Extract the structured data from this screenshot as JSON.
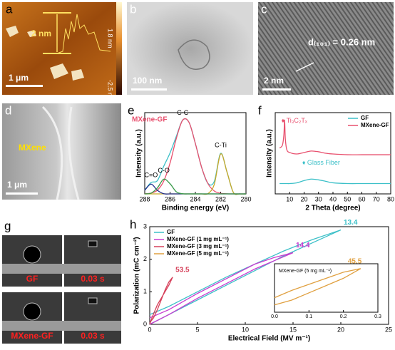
{
  "panels": {
    "a": {
      "label": "a",
      "profile_height": "2 nm",
      "scale_max": "1.8 nm",
      "scale_min": "-2.5 nm",
      "scale_bar": "1 μm"
    },
    "b": {
      "label": "b",
      "scale_bar": "100 nm"
    },
    "c": {
      "label": "c",
      "lattice": "d₍₁₀₁₎ = 0.26 nm",
      "scale_bar": "2 nm"
    },
    "d": {
      "label": "d",
      "material": "MXene",
      "scale_bar": "1 μm"
    },
    "g": {
      "label": "g",
      "top_sample": "GF",
      "top_time": "0.03 s",
      "bottom_sample": "MXene-GF",
      "bottom_time": "0.03 s"
    }
  },
  "chart_data": [
    {
      "type": "line",
      "panel": "e",
      "title": "MXene-GF",
      "xlabel": "Binding energy (eV)",
      "ylabel": "Intensity (a.u.)",
      "x": [
        288,
        287.5,
        287,
        286.5,
        286,
        285.5,
        285,
        284.5,
        284,
        283.5,
        283,
        282.5,
        282,
        281.5,
        281,
        280.5,
        280
      ],
      "xlim": [
        288,
        280
      ],
      "xticks": [
        288,
        286,
        284,
        282,
        280
      ],
      "ylim": [
        0,
        1.08
      ],
      "series": [
        {
          "color": "#3cc0c8",
          "values": [
            0.049,
            0.151,
            0.177,
            0.367,
            0.545,
            0.767,
            0.982,
            0.95,
            0.67,
            0.35,
            0.139,
            0.168,
            0.538,
            0.291,
            0.02,
            0,
            0
          ]
        },
        {
          "name": "C-C",
          "color": "#e8506e",
          "values": [
            0.002,
            0.011,
            0.05,
            0.17,
            0.41,
            0.74,
            0.98,
            0.95,
            0.67,
            0.35,
            0.135,
            0.038,
            0.008,
            0.001,
            0,
            0,
            0
          ]
        },
        {
          "name": "C-Ti",
          "color": "#c8a82a",
          "values": [
            0,
            0,
            0,
            0,
            0,
            0,
            0,
            0,
            0,
            0,
            0.004,
            0.13,
            0.53,
            0.29,
            0.02,
            0,
            0
          ]
        },
        {
          "name": "C=O",
          "color": "#1f2c8c",
          "values": [
            0.047,
            0.13,
            0.047,
            0.002,
            0,
            0,
            0,
            0,
            0,
            0,
            0,
            0,
            0,
            0,
            0,
            0,
            0
          ]
        },
        {
          "name": "C-O",
          "color": "#3a9a4a",
          "values": [
            0,
            0.01,
            0.08,
            0.195,
            0.135,
            0.027,
            0.002,
            0,
            0,
            0,
            0,
            0,
            0,
            0,
            0,
            0,
            0
          ]
        }
      ]
    },
    {
      "type": "line",
      "panel": "f",
      "xlabel": "2 Theta (degree)",
      "ylabel": "Intensity (a.u.)",
      "x": [
        3,
        5,
        6,
        6.5,
        7,
        8,
        10,
        15,
        20,
        25,
        30,
        35,
        40,
        50,
        60,
        70,
        80
      ],
      "xlim": [
        0,
        80
      ],
      "xticks": [
        10,
        20,
        30,
        40,
        50,
        60,
        70,
        80
      ],
      "ylim": [
        0,
        1.1
      ],
      "legend": "upper right",
      "annotations": [
        "♦ Ti₃C₂Tₓ",
        "♦ Glass Fiber"
      ],
      "series": [
        {
          "name": "GF",
          "color": "#3cc0c8",
          "values": [
            0.14,
            0.14,
            0.14,
            0.14,
            0.14,
            0.14,
            0.14,
            0.15,
            0.18,
            0.2,
            0.19,
            0.17,
            0.15,
            0.14,
            0.14,
            0.14,
            0.14
          ]
        },
        {
          "name": "MXene-GF",
          "color": "#e8506e",
          "values": [
            0.62,
            0.66,
            0.8,
            1.0,
            0.75,
            0.6,
            0.56,
            0.54,
            0.56,
            0.58,
            0.57,
            0.55,
            0.54,
            0.53,
            0.53,
            0.53,
            0.53
          ]
        }
      ]
    },
    {
      "type": "line",
      "panel": "h",
      "xlabel": "Electrical Field (MV m⁻¹)",
      "ylabel": "Polarization (mC cm⁻²)",
      "xlim": [
        0,
        25
      ],
      "xticks": [
        0,
        5,
        10,
        15,
        20,
        25
      ],
      "ylim": [
        0,
        3
      ],
      "yticks": [
        0,
        1,
        2,
        3
      ],
      "legend": "upper left",
      "inset": {
        "title": "MXene-GF (5 mg mL⁻¹)",
        "xlim": [
          0,
          0.3
        ],
        "xticks": [
          {
            "value": 0,
            "label": "0.0"
          },
          0.1,
          0.2,
          0.3
        ],
        "ylim": [
          0,
          0.2
        ]
      },
      "series": [
        {
          "name": "GF",
          "color": "#3cc0c8",
          "breakdown": 13.4,
          "x": [
            0,
            2,
            5,
            8,
            11,
            14,
            17,
            20,
            17,
            14,
            11,
            8,
            5,
            2,
            0
          ],
          "values": [
            0,
            0.3,
            0.75,
            1.2,
            1.65,
            2.1,
            2.5,
            2.9,
            2.6,
            2.25,
            1.85,
            1.45,
            1.0,
            0.55,
            0.3
          ]
        },
        {
          "name": "MXene-GF (1 mg mL⁻¹)",
          "color": "#c83cd0",
          "breakdown": 14.4,
          "x": [
            0,
            2,
            5,
            8,
            11,
            13,
            15,
            13,
            11,
            8,
            5,
            2,
            0
          ],
          "values": [
            0,
            0.3,
            0.8,
            1.25,
            1.7,
            1.95,
            2.2,
            2.05,
            1.85,
            1.4,
            0.95,
            0.45,
            0.2
          ]
        },
        {
          "name": "MXene-GF (3 mg mL⁻¹)",
          "color": "#d6405a",
          "breakdown": 53.5,
          "x": [
            0,
            0.3,
            0.8,
            1.2,
            1.6,
            2.0,
            2.4,
            2.0,
            1.6,
            1.2,
            0.8,
            0.4,
            0
          ],
          "values": [
            0,
            0.25,
            0.6,
            0.8,
            1.0,
            1.2,
            1.45,
            1.3,
            1.05,
            0.75,
            0.45,
            0.2,
            0.05
          ]
        },
        {
          "name": "MXene-GF (5 mg mL⁻¹)",
          "color": "#e0a040",
          "breakdown": 45.5,
          "axis": "inset",
          "x": [
            0,
            0.05,
            0.1,
            0.15,
            0.2,
            0.25,
            0.2,
            0.15,
            0.1,
            0.05,
            0
          ],
          "values": [
            0.03,
            0.05,
            0.08,
            0.11,
            0.14,
            0.18,
            0.165,
            0.14,
            0.115,
            0.09,
            0.06
          ]
        }
      ]
    }
  ]
}
